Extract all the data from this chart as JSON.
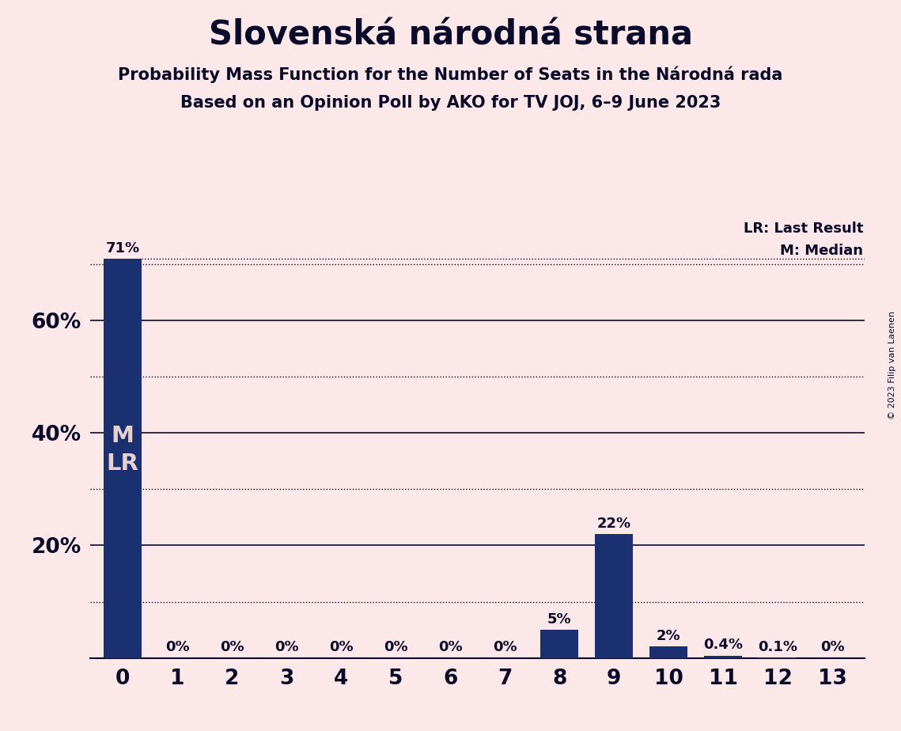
{
  "title": "Slovenská národná strana",
  "subtitle1": "Probability Mass Function for the Number of Seats in the Národná rada",
  "subtitle2": "Based on an Opinion Poll by AKO for TV JOJ, 6–9 June 2023",
  "copyright": "© 2023 Filip van Laenen",
  "categories": [
    0,
    1,
    2,
    3,
    4,
    5,
    6,
    7,
    8,
    9,
    10,
    11,
    12,
    13
  ],
  "values": [
    0.71,
    0.0,
    0.0,
    0.0,
    0.0,
    0.0,
    0.0,
    0.0,
    0.05,
    0.22,
    0.02,
    0.004,
    0.001,
    0.0
  ],
  "labels": [
    "71%",
    "0%",
    "0%",
    "0%",
    "0%",
    "0%",
    "0%",
    "0%",
    "5%",
    "22%",
    "2%",
    "0.4%",
    "0.1%",
    "0%"
  ],
  "bar_color": "#1a3070",
  "background_color": "#fce8e8",
  "text_color": "#0a0a2a",
  "bar_text_color": "#e8d0d0",
  "ylim": [
    0,
    0.78
  ],
  "solid_gridlines": [
    0.2,
    0.4,
    0.6
  ],
  "dotted_gridlines": [
    0.1,
    0.3,
    0.5,
    0.7
  ],
  "legend_lr": "LR: Last Result",
  "legend_m": "M: Median",
  "title_fontsize": 30,
  "subtitle_fontsize": 15,
  "label_fontsize": 13,
  "ytick_fontsize": 19,
  "xtick_fontsize": 19
}
